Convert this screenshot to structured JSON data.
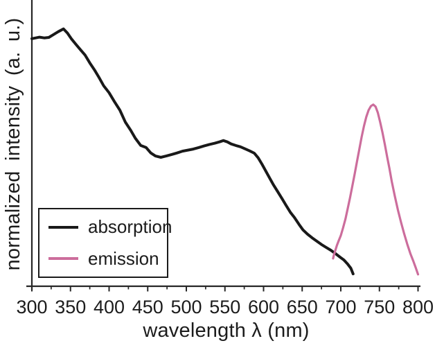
{
  "figure": {
    "colors": {
      "absorption": "#191919",
      "emission": "#cc6d9c",
      "axis": "#262626",
      "background": "#ffffff"
    }
  },
  "chart_data": {
    "type": "line",
    "title": "",
    "xlabel": "wavelength λ (nm)",
    "ylabel": "normalized  intensity (a. u.)",
    "xlim": [
      300,
      800
    ],
    "ylim": [
      0,
      1.08
    ],
    "x_ticks_major": [
      300,
      350,
      400,
      450,
      500,
      550,
      600,
      650,
      700,
      750,
      800
    ],
    "x_minor_tick_step": 25,
    "grid": false,
    "legend_position": "lower-left",
    "legend_items": [
      "absorption",
      "emission"
    ],
    "series": [
      {
        "name": "absorption",
        "color": "#191919",
        "x": [
          300,
          305,
          310,
          316,
          322,
          328,
          334,
          341,
          346,
          351,
          357,
          363,
          369,
          375,
          381,
          387,
          393,
          400,
          407,
          414,
          421,
          428,
          434,
          441,
          448,
          454,
          460,
          467,
          474,
          481,
          488,
          495,
          502,
          509,
          516,
          523,
          530,
          537,
          543,
          548,
          553,
          558,
          564,
          570,
          576,
          582,
          588,
          593,
          598,
          603,
          608,
          613,
          618,
          624,
          629,
          635,
          640,
          646,
          651,
          657,
          663,
          669,
          675,
          681,
          687,
          693,
          699,
          704,
          709,
          713,
          716
        ],
        "y": [
          0.962,
          0.965,
          0.968,
          0.965,
          0.967,
          0.978,
          0.989,
          1.0,
          0.984,
          0.962,
          0.94,
          0.919,
          0.898,
          0.868,
          0.841,
          0.811,
          0.779,
          0.752,
          0.717,
          0.684,
          0.638,
          0.606,
          0.575,
          0.547,
          0.539,
          0.518,
          0.506,
          0.501,
          0.506,
          0.512,
          0.518,
          0.525,
          0.529,
          0.533,
          0.539,
          0.545,
          0.551,
          0.556,
          0.561,
          0.566,
          0.561,
          0.553,
          0.547,
          0.542,
          0.534,
          0.526,
          0.517,
          0.499,
          0.474,
          0.447,
          0.42,
          0.393,
          0.369,
          0.34,
          0.315,
          0.286,
          0.267,
          0.24,
          0.219,
          0.202,
          0.188,
          0.175,
          0.162,
          0.151,
          0.14,
          0.127,
          0.113,
          0.102,
          0.086,
          0.07,
          0.048
        ]
      },
      {
        "name": "emission",
        "color": "#cc6d9c",
        "x": [
          690,
          691,
          693,
          695,
          697,
          700,
          703,
          706,
          709,
          712,
          715,
          718,
          721,
          724,
          727,
          730,
          733,
          736,
          739,
          742,
          745,
          748,
          751,
          754,
          757,
          760,
          763,
          766,
          770,
          774,
          778,
          782,
          786,
          790,
          794,
          797,
          800
        ],
        "y": [
          0.108,
          0.121,
          0.14,
          0.159,
          0.175,
          0.197,
          0.227,
          0.261,
          0.302,
          0.345,
          0.39,
          0.437,
          0.485,
          0.533,
          0.58,
          0.623,
          0.658,
          0.684,
          0.7,
          0.706,
          0.698,
          0.674,
          0.637,
          0.597,
          0.551,
          0.503,
          0.458,
          0.407,
          0.35,
          0.296,
          0.248,
          0.205,
          0.164,
          0.127,
          0.097,
          0.072,
          0.046
        ]
      }
    ]
  }
}
